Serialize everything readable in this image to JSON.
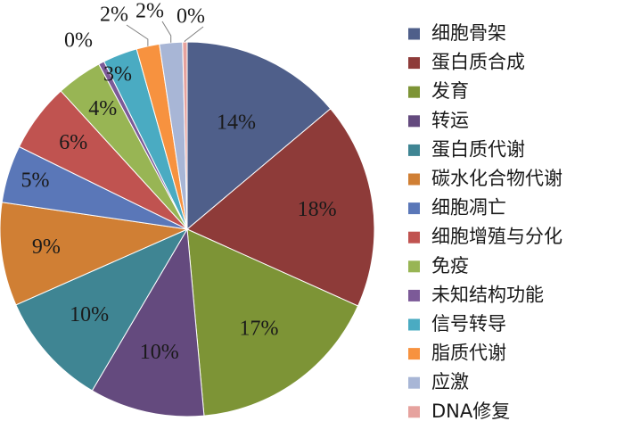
{
  "chart_data": {
    "type": "pie",
    "categories": [
      "细胞骨架",
      "蛋白质合成",
      "发育",
      "转运",
      "蛋白质代谢",
      "碳水化合物代谢",
      "细胞凋亡",
      "细胞增殖与分化",
      "免疫",
      "未知结构功能",
      "信号转导",
      "脂质代谢",
      "应激",
      "DNA修复"
    ],
    "values": [
      14,
      18,
      17,
      10,
      10,
      9,
      5,
      6,
      4,
      0.5,
      3,
      2,
      2,
      0.4
    ],
    "labels": [
      "14%",
      "18%",
      "17%",
      "10%",
      "10%",
      "9%",
      "5%",
      "6%",
      "4%",
      "0%",
      "3%",
      "2%",
      "2%",
      "0%"
    ],
    "colors": [
      "#4F5F8A",
      "#8E3B39",
      "#7D9436",
      "#644A7E",
      "#3F8593",
      "#D07F34",
      "#5A77B8",
      "#C05350",
      "#98B554",
      "#7C5A98",
      "#4AABC2",
      "#F7923F",
      "#A8B6D6",
      "#E6A29E"
    ],
    "legend": {
      "position": "right"
    },
    "title": ""
  }
}
